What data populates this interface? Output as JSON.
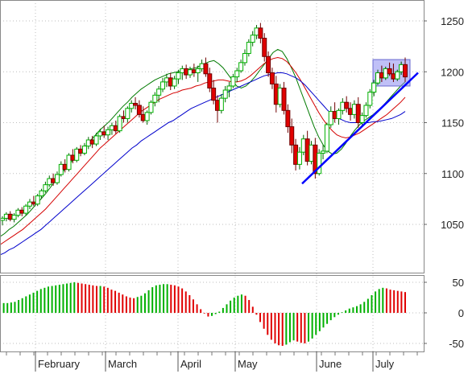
{
  "chart_data": [
    {
      "type": "candlestick",
      "panel": "price",
      "title": "",
      "ylim": [
        1000,
        1265
      ],
      "yticks": [
        1050,
        1100,
        1150,
        1200,
        1250
      ],
      "xtick_labels": [
        "February",
        "March",
        "April",
        "May",
        "June",
        "July"
      ],
      "grid": true,
      "colors": {
        "up": "#00b000",
        "down": "#e00000",
        "ma_fast": "#007a00",
        "ma_mid": "#d40000",
        "ma_slow": "#0000cc",
        "trendline": "#0000ff",
        "highlight": "#8c8cf0"
      },
      "ohlc": [
        [
          1054,
          1058,
          1049,
          1056
        ],
        [
          1056,
          1062,
          1053,
          1060
        ],
        [
          1060,
          1063,
          1053,
          1055
        ],
        [
          1055,
          1061,
          1052,
          1059
        ],
        [
          1059,
          1066,
          1057,
          1064
        ],
        [
          1064,
          1067,
          1058,
          1061
        ],
        [
          1061,
          1070,
          1059,
          1068
        ],
        [
          1068,
          1075,
          1065,
          1072
        ],
        [
          1072,
          1078,
          1068,
          1070
        ],
        [
          1070,
          1080,
          1068,
          1078
        ],
        [
          1078,
          1085,
          1075,
          1083
        ],
        [
          1083,
          1092,
          1081,
          1089
        ],
        [
          1089,
          1098,
          1087,
          1095
        ],
        [
          1095,
          1100,
          1088,
          1091
        ],
        [
          1091,
          1102,
          1089,
          1099
        ],
        [
          1099,
          1112,
          1097,
          1109
        ],
        [
          1109,
          1114,
          1101,
          1104
        ],
        [
          1104,
          1120,
          1102,
          1118
        ],
        [
          1118,
          1124,
          1110,
          1113
        ],
        [
          1113,
          1126,
          1111,
          1124
        ],
        [
          1124,
          1128,
          1117,
          1120
        ],
        [
          1120,
          1130,
          1118,
          1127
        ],
        [
          1127,
          1136,
          1124,
          1133
        ],
        [
          1133,
          1137,
          1125,
          1129
        ],
        [
          1129,
          1140,
          1127,
          1137
        ],
        [
          1137,
          1144,
          1133,
          1141
        ],
        [
          1141,
          1147,
          1135,
          1138
        ],
        [
          1138,
          1146,
          1133,
          1143
        ],
        [
          1143,
          1150,
          1138,
          1147
        ],
        [
          1147,
          1152,
          1139,
          1142
        ],
        [
          1142,
          1158,
          1140,
          1156
        ],
        [
          1156,
          1162,
          1150,
          1154
        ],
        [
          1154,
          1166,
          1150,
          1164
        ],
        [
          1164,
          1172,
          1160,
          1169
        ],
        [
          1169,
          1175,
          1163,
          1167
        ],
        [
          1167,
          1172,
          1155,
          1158
        ],
        [
          1158,
          1166,
          1150,
          1152
        ],
        [
          1152,
          1162,
          1148,
          1160
        ],
        [
          1160,
          1172,
          1158,
          1170
        ],
        [
          1170,
          1180,
          1166,
          1177
        ],
        [
          1177,
          1186,
          1170,
          1183
        ],
        [
          1183,
          1194,
          1180,
          1190
        ],
        [
          1190,
          1198,
          1185,
          1194
        ],
        [
          1194,
          1199,
          1182,
          1186
        ],
        [
          1186,
          1196,
          1183,
          1193
        ],
        [
          1193,
          1202,
          1188,
          1199
        ],
        [
          1199,
          1206,
          1192,
          1203
        ],
        [
          1203,
          1207,
          1193,
          1197
        ],
        [
          1197,
          1205,
          1194,
          1202
        ],
        [
          1202,
          1208,
          1195,
          1199
        ],
        [
          1199,
          1206,
          1190,
          1203
        ],
        [
          1203,
          1212,
          1200,
          1208
        ],
        [
          1208,
          1214,
          1195,
          1198
        ],
        [
          1198,
          1204,
          1180,
          1184
        ],
        [
          1184,
          1192,
          1168,
          1172
        ],
        [
          1172,
          1177,
          1150,
          1162
        ],
        [
          1162,
          1178,
          1159,
          1174
        ],
        [
          1174,
          1186,
          1170,
          1182
        ],
        [
          1182,
          1190,
          1175,
          1186
        ],
        [
          1186,
          1198,
          1184,
          1195
        ],
        [
          1195,
          1204,
          1190,
          1201
        ],
        [
          1201,
          1212,
          1199,
          1209
        ],
        [
          1209,
          1222,
          1206,
          1218
        ],
        [
          1218,
          1232,
          1215,
          1229
        ],
        [
          1229,
          1240,
          1225,
          1236
        ],
        [
          1236,
          1246,
          1232,
          1243
        ],
        [
          1243,
          1248,
          1228,
          1233
        ],
        [
          1233,
          1238,
          1210,
          1215
        ],
        [
          1215,
          1220,
          1195,
          1199
        ],
        [
          1199,
          1204,
          1183,
          1188
        ],
        [
          1188,
          1196,
          1160,
          1168
        ],
        [
          1168,
          1188,
          1165,
          1184
        ],
        [
          1184,
          1190,
          1158,
          1162
        ],
        [
          1162,
          1168,
          1140,
          1146
        ],
        [
          1146,
          1154,
          1120,
          1128
        ],
        [
          1128,
          1134,
          1103,
          1109
        ],
        [
          1109,
          1126,
          1104,
          1121
        ],
        [
          1121,
          1138,
          1118,
          1134
        ],
        [
          1134,
          1142,
          1108,
          1112
        ],
        [
          1112,
          1132,
          1109,
          1128
        ],
        [
          1128,
          1135,
          1095,
          1100
        ],
        [
          1100,
          1124,
          1098,
          1120
        ],
        [
          1120,
          1128,
          1114,
          1122
        ],
        [
          1122,
          1150,
          1120,
          1148
        ],
        [
          1148,
          1166,
          1145,
          1161
        ],
        [
          1161,
          1170,
          1150,
          1154
        ],
        [
          1154,
          1164,
          1148,
          1162
        ],
        [
          1162,
          1174,
          1158,
          1170
        ],
        [
          1170,
          1176,
          1160,
          1164
        ],
        [
          1164,
          1170,
          1152,
          1158
        ],
        [
          1158,
          1172,
          1154,
          1168
        ],
        [
          1168,
          1175,
          1145,
          1150
        ],
        [
          1150,
          1160,
          1146,
          1157
        ],
        [
          1157,
          1170,
          1155,
          1167
        ],
        [
          1167,
          1183,
          1164,
          1180
        ],
        [
          1180,
          1192,
          1176,
          1189
        ],
        [
          1189,
          1202,
          1187,
          1199
        ],
        [
          1199,
          1206,
          1190,
          1194
        ],
        [
          1194,
          1205,
          1192,
          1203
        ],
        [
          1203,
          1209,
          1196,
          1198
        ],
        [
          1198,
          1208,
          1190,
          1193
        ],
        [
          1193,
          1202,
          1191,
          1200
        ],
        [
          1200,
          1210,
          1197,
          1207
        ],
        [
          1207,
          1214,
          1190,
          1195
        ]
      ],
      "moving_averages": {
        "fast": [
          1038,
          1041,
          1045,
          1048,
          1052,
          1056,
          1060,
          1065,
          1070,
          1075,
          1080,
          1086,
          1092,
          1098,
          1103,
          1108,
          1113,
          1118,
          1123,
          1128,
          1133,
          1138,
          1143,
          1147,
          1151,
          1156,
          1161,
          1166,
          1170,
          1175,
          1179,
          1183,
          1186,
          1189,
          1192,
          1194,
          1196,
          1198,
          1199,
          1200,
          1201,
          1202,
          1203,
          1204,
          1206,
          1208,
          1210,
          1211,
          1208,
          1204,
          1198,
          1192,
          1186,
          1184,
          1186,
          1190,
          1195,
          1201,
          1207,
          1213,
          1219,
          1222,
          1220,
          1213,
          1204,
          1194,
          1182,
          1170,
          1158,
          1146,
          1136,
          1128,
          1122,
          1119,
          1120,
          1124,
          1130,
          1137,
          1143,
          1148,
          1152,
          1155,
          1158,
          1162,
          1166,
          1171,
          1176,
          1181,
          1186,
          1190
        ],
        "mid": [
          1030,
          1033,
          1036,
          1039,
          1042,
          1045,
          1049,
          1053,
          1057,
          1061,
          1065,
          1070,
          1075,
          1080,
          1085,
          1090,
          1095,
          1100,
          1105,
          1110,
          1115,
          1120,
          1125,
          1129,
          1133,
          1137,
          1141,
          1145,
          1149,
          1153,
          1157,
          1161,
          1164,
          1167,
          1170,
          1173,
          1175,
          1177,
          1179,
          1180,
          1182,
          1183,
          1184,
          1186,
          1187,
          1189,
          1190,
          1191,
          1192,
          1192,
          1191,
          1190,
          1190,
          1191,
          1193,
          1196,
          1200,
          1204,
          1208,
          1211,
          1213,
          1214,
          1213,
          1210,
          1205,
          1199,
          1192,
          1184,
          1176,
          1168,
          1160,
          1153,
          1147,
          1142,
          1138,
          1136,
          1135,
          1136,
          1138,
          1140,
          1143,
          1146,
          1149,
          1152,
          1155,
          1158,
          1162,
          1166,
          1170,
          1175
        ],
        "slow": [
          1020,
          1022,
          1025,
          1027,
          1030,
          1033,
          1036,
          1039,
          1042,
          1045,
          1049,
          1053,
          1057,
          1061,
          1065,
          1069,
          1073,
          1077,
          1081,
          1085,
          1089,
          1093,
          1097,
          1101,
          1105,
          1109,
          1113,
          1117,
          1121,
          1125,
          1128,
          1132,
          1135,
          1138,
          1141,
          1144,
          1147,
          1150,
          1152,
          1155,
          1158,
          1161,
          1164,
          1166,
          1168,
          1170,
          1172,
          1174,
          1176,
          1178,
          1180,
          1182,
          1184,
          1186,
          1188,
          1190,
          1192,
          1194,
          1196,
          1197,
          1198,
          1199,
          1199,
          1198,
          1196,
          1194,
          1191,
          1187,
          1182,
          1177,
          1172,
          1167,
          1162,
          1158,
          1155,
          1153,
          1151,
          1150,
          1150,
          1150,
          1150,
          1150,
          1151,
          1151,
          1152,
          1153,
          1154,
          1156,
          1158,
          1161
        ]
      },
      "trendline": [
        [
          1090,
          1199
        ]
      ],
      "annotations": [
        "highlight box over the final July consolidation range (about 1186–1212)",
        "rising support trendline from the June low"
      ]
    },
    {
      "type": "histogram",
      "panel": "oscillator",
      "title": "",
      "ylim": [
        -60,
        60
      ],
      "yticks": [
        50,
        0,
        -50
      ],
      "colors": {
        "rising": "#00b000",
        "falling": "#e00000"
      },
      "values": [
        15,
        16,
        16,
        17,
        18,
        21,
        24,
        27,
        30,
        33,
        36,
        39,
        41,
        43,
        44,
        45,
        46,
        47,
        48,
        49,
        50,
        49,
        48,
        47,
        46,
        45,
        44,
        44,
        43,
        41,
        38,
        36,
        33,
        30,
        27,
        25,
        24,
        26,
        28,
        32,
        37,
        42,
        45,
        46,
        47,
        47,
        46,
        45,
        43,
        40,
        35,
        29,
        22,
        14,
        6,
        -1,
        -6,
        -5,
        -2,
        2,
        8,
        14,
        20,
        25,
        28,
        30,
        28,
        21,
        10,
        -3,
        -15,
        -26,
        -36,
        -44,
        -50,
        -53,
        -54,
        -52,
        -48,
        -45,
        -47,
        -49,
        -50,
        -47,
        -42,
        -36,
        -30,
        -24,
        -18,
        -12,
        -7,
        -3,
        1,
        4,
        7,
        9,
        11,
        14,
        18,
        23,
        29,
        35,
        39,
        41,
        40,
        38,
        37,
        36,
        35,
        34
      ]
    }
  ]
}
